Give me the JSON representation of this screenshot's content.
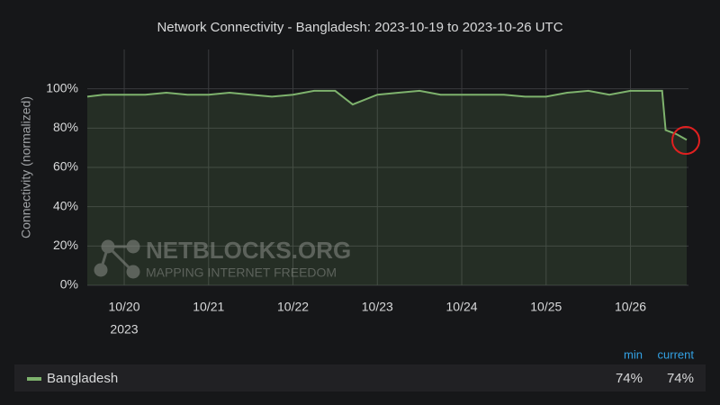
{
  "chart_data": {
    "type": "line",
    "title": "Network Connectivity - Bangladesh: 2023-10-19 to 2023-10-26 UTC",
    "y_label": "Connectivity (normalized)",
    "x_year_label": "2023",
    "watermark": {
      "title": "NETBLOCKS.ORG",
      "subtitle": "MAPPING INTERNET FREEDOM"
    },
    "x": [
      "2023-10-19T13:30",
      "2023-10-19T18:00",
      "2023-10-20T00:00",
      "2023-10-20T06:00",
      "2023-10-20T12:00",
      "2023-10-20T18:00",
      "2023-10-21T00:00",
      "2023-10-21T06:00",
      "2023-10-21T12:00",
      "2023-10-21T18:00",
      "2023-10-22T00:00",
      "2023-10-22T06:00",
      "2023-10-22T12:00",
      "2023-10-22T17:00",
      "2023-10-23T00:00",
      "2023-10-23T06:00",
      "2023-10-23T12:00",
      "2023-10-23T18:00",
      "2023-10-24T00:00",
      "2023-10-24T06:00",
      "2023-10-24T12:00",
      "2023-10-24T18:00",
      "2023-10-25T00:00",
      "2023-10-25T06:00",
      "2023-10-25T12:00",
      "2023-10-25T18:00",
      "2023-10-26T00:00",
      "2023-10-26T09:00",
      "2023-10-26T10:00",
      "2023-10-26T13:00",
      "2023-10-26T16:00"
    ],
    "series": [
      {
        "name": "Bangladesh",
        "color": "#7eb26d",
        "values": [
          96,
          97,
          97,
          97,
          98,
          97,
          97,
          98,
          97,
          96,
          97,
          99,
          99,
          92,
          97,
          98,
          99,
          97,
          97,
          97,
          97,
          96,
          96,
          98,
          99,
          97,
          99,
          99,
          79,
          77,
          74
        ],
        "stats": {
          "labels": [
            "min",
            "current"
          ],
          "values": [
            74,
            74
          ],
          "value_labels": [
            "74%",
            "74%"
          ]
        }
      }
    ],
    "xlim": [
      "2023-10-19T13:30",
      "2023-10-26T16:30"
    ],
    "xticks": [
      {
        "value": "2023-10-20T00:00",
        "label": "10/20"
      },
      {
        "value": "2023-10-21T00:00",
        "label": "10/21"
      },
      {
        "value": "2023-10-22T00:00",
        "label": "10/22"
      },
      {
        "value": "2023-10-23T00:00",
        "label": "10/23"
      },
      {
        "value": "2023-10-24T00:00",
        "label": "10/24"
      },
      {
        "value": "2023-10-25T00:00",
        "label": "10/25"
      },
      {
        "value": "2023-10-26T00:00",
        "label": "10/26"
      }
    ],
    "ylim": [
      0,
      120
    ],
    "yticks": [
      {
        "value": 0,
        "label": "0%"
      },
      {
        "value": 20,
        "label": "20%"
      },
      {
        "value": 40,
        "label": "40%"
      },
      {
        "value": 60,
        "label": "60%"
      },
      {
        "value": 80,
        "label": "80%"
      },
      {
        "value": 100,
        "label": "100%"
      }
    ],
    "grid": true
  }
}
